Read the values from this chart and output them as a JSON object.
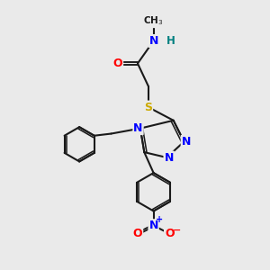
{
  "bg_color": "#eaeaea",
  "bond_color": "#1a1a1a",
  "bond_width": 1.5,
  "atom_colors": {
    "N": "#0000ff",
    "O": "#ff0000",
    "S": "#ccaa00",
    "H": "#008080",
    "C": "#1a1a1a"
  },
  "layout": {
    "xlim": [
      0,
      10
    ],
    "ylim": [
      0,
      10
    ]
  }
}
